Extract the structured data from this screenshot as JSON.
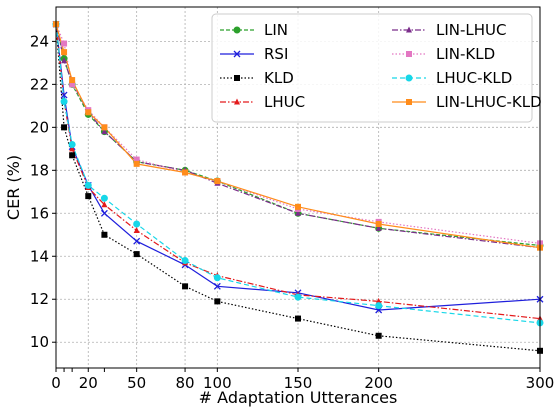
{
  "chart_data": {
    "type": "line",
    "xlabel": "# Adaptation Utterances",
    "ylabel": "CER (%)",
    "xlim": [
      0,
      300
    ],
    "ylim": [
      8.8,
      25.6
    ],
    "xticks": [
      0,
      20,
      50,
      80,
      100,
      150,
      200,
      300
    ],
    "yticks": [
      10,
      12,
      14,
      16,
      18,
      20,
      22,
      24
    ],
    "grid": true,
    "legend": "top-right",
    "series": [
      {
        "name": "LIN",
        "color": "#2ca02c",
        "dash": "4,2",
        "marker": "circle",
        "x": [
          0,
          5,
          10,
          20,
          30,
          50,
          80,
          100,
          150,
          200,
          300
        ],
        "y": [
          24.8,
          23.2,
          22.0,
          20.6,
          19.8,
          18.4,
          18.0,
          17.5,
          16.0,
          15.3,
          14.5
        ]
      },
      {
        "name": "RSI",
        "color": "#1f1fdc",
        "dash": "",
        "marker": "x",
        "x": [
          0,
          5,
          10,
          20,
          30,
          50,
          80,
          100,
          150,
          200,
          300
        ],
        "y": [
          24.8,
          21.5,
          19.1,
          17.3,
          16.0,
          14.7,
          13.6,
          12.6,
          12.3,
          11.5,
          12.0
        ]
      },
      {
        "name": "KLD",
        "color": "#000000",
        "dash": "1.5,2",
        "marker": "square",
        "x": [
          0,
          5,
          10,
          20,
          30,
          50,
          80,
          100,
          150,
          200,
          300
        ],
        "y": [
          24.8,
          20.0,
          18.7,
          16.8,
          15.0,
          14.1,
          12.6,
          11.9,
          11.1,
          10.3,
          9.6
        ]
      },
      {
        "name": "LHUC",
        "color": "#e31a1c",
        "dash": "6,2,1.5,2",
        "marker": "triangle",
        "x": [
          0,
          5,
          10,
          20,
          30,
          50,
          80,
          100,
          150,
          200,
          300
        ],
        "y": [
          24.8,
          21.2,
          19.0,
          17.2,
          16.4,
          15.2,
          13.7,
          13.1,
          12.2,
          11.9,
          11.1
        ]
      },
      {
        "name": "LIN-LHUC",
        "color": "#7b2d8b",
        "dash": "6,2,1.5,2",
        "marker": "triangle",
        "x": [
          0,
          5,
          10,
          20,
          30,
          50,
          80,
          100,
          150,
          200,
          300
        ],
        "y": [
          24.8,
          23.1,
          22.1,
          20.7,
          19.8,
          18.4,
          18.0,
          17.4,
          16.0,
          15.3,
          14.4
        ]
      },
      {
        "name": "LIN-KLD",
        "color": "#e377c2",
        "dash": "1.5,2",
        "marker": "square",
        "x": [
          0,
          5,
          10,
          20,
          30,
          50,
          80,
          100,
          150,
          200,
          300
        ],
        "y": [
          24.8,
          23.9,
          22.0,
          20.8,
          20.0,
          18.5,
          17.9,
          17.5,
          16.2,
          15.6,
          14.6
        ]
      },
      {
        "name": "LHUC-KLD",
        "color": "#17d7e8",
        "dash": "5,3",
        "marker": "circle",
        "x": [
          0,
          5,
          10,
          20,
          30,
          50,
          80,
          100,
          150,
          200,
          300
        ],
        "y": [
          24.8,
          21.2,
          19.2,
          17.3,
          16.7,
          15.5,
          13.8,
          13.0,
          12.1,
          11.7,
          10.9
        ]
      },
      {
        "name": "LIN-LHUC-KLD",
        "color": "#ff8c1a",
        "dash": "",
        "marker": "square",
        "x": [
          0,
          5,
          10,
          20,
          30,
          50,
          80,
          100,
          150,
          200,
          300
        ],
        "y": [
          24.8,
          23.5,
          22.2,
          20.7,
          20.0,
          18.3,
          17.9,
          17.5,
          16.3,
          15.5,
          14.4
        ]
      }
    ]
  }
}
